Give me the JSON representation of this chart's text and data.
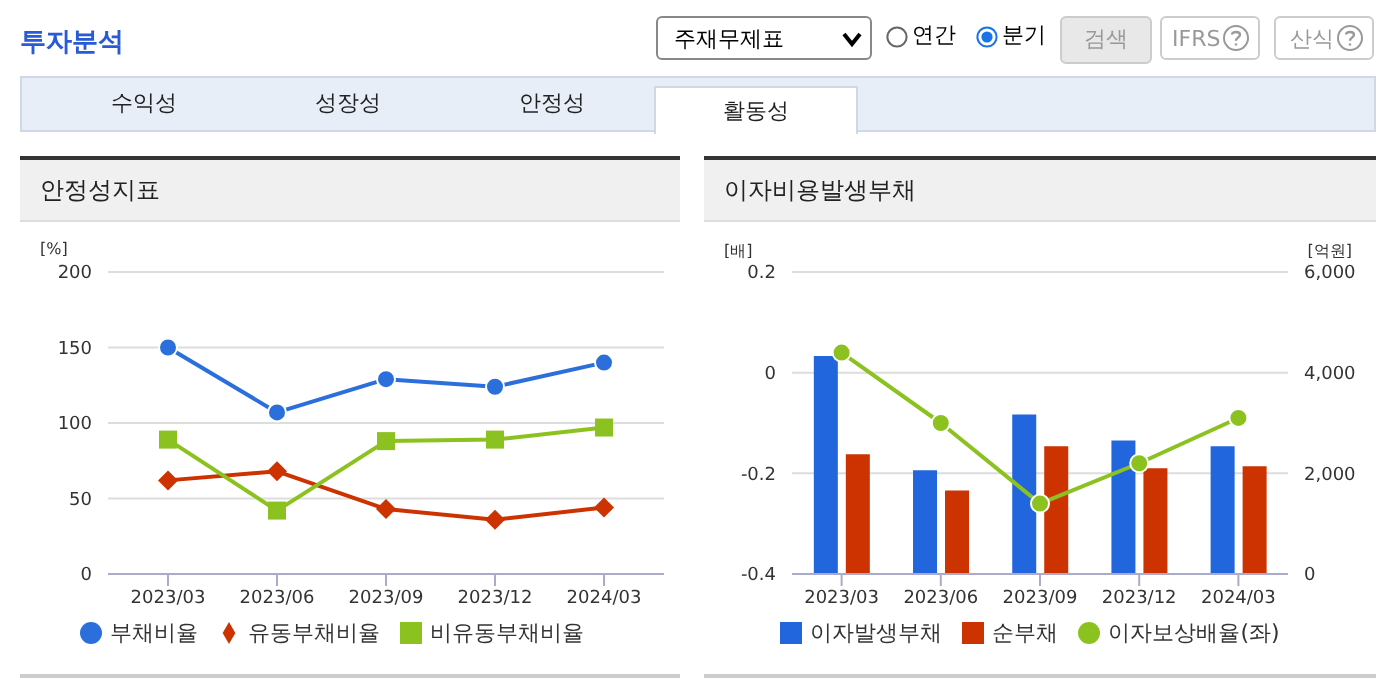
{
  "chart_data": [
    {
      "type": "other",
      "title": "투자분석",
      "annotations": [
        "주재무제표",
        "연간",
        "분기",
        "검색",
        "IFRS",
        "산식",
        "수익성",
        "성장성",
        "안정성",
        "활동성"
      ]
    },
    {
      "type": "line",
      "title": "안정성지표",
      "ylabel": "[%]",
      "categories": [
        "2023/03",
        "2023/06",
        "2023/09",
        "2023/12",
        "2024/03"
      ],
      "series": [
        {
          "name": "부채비율",
          "color": "#2a6fdb",
          "marker": "circle",
          "values": [
            150,
            107,
            129,
            124,
            140
          ]
        },
        {
          "name": "유동부채비율",
          "color": "#cc3300",
          "marker": "diamond",
          "values": [
            62,
            68,
            43,
            36,
            44
          ]
        },
        {
          "name": "비유동부채비율",
          "color": "#8cc21f",
          "marker": "square",
          "values": [
            89,
            42,
            88,
            89,
            97
          ]
        }
      ],
      "ylim": [
        0,
        200
      ],
      "yticks": [
        0,
        50,
        100,
        150,
        200
      ],
      "grid": "y",
      "legend": "bottom"
    },
    {
      "type": "bar",
      "title": "이자비용발생부채",
      "ylabel": "[배]",
      "y2label": "[억원]",
      "categories": [
        "2023/03",
        "2023/06",
        "2023/09",
        "2023/12",
        "2024/03"
      ],
      "series": [
        {
          "name": "이자발생부채",
          "color": "#2266dd",
          "axis": "y2",
          "values": [
            4330,
            2060,
            3170,
            2650,
            2540
          ]
        },
        {
          "name": "순부채",
          "color": "#cc3300",
          "axis": "y2",
          "values": [
            2380,
            1660,
            2540,
            2100,
            2140
          ]
        },
        {
          "name": "이자보상배율(좌)",
          "color": "#8cc21f",
          "type": "line",
          "marker": "circle",
          "axis": "y",
          "values": [
            0.04,
            -0.1,
            -0.26,
            -0.18,
            -0.09
          ]
        }
      ],
      "ylim": [
        -0.4,
        0.2
      ],
      "yticks": [
        -0.4,
        -0.2,
        0,
        0.2
      ],
      "y2lim": [
        0,
        6000
      ],
      "y2ticks": [
        0,
        {
          "value": 2000,
          "label": "2,000"
        },
        {
          "value": 4000,
          "label": "4,000"
        },
        {
          "value": 6000,
          "label": "6,000"
        }
      ],
      "grid": "y",
      "legend": "bottom"
    }
  ]
}
